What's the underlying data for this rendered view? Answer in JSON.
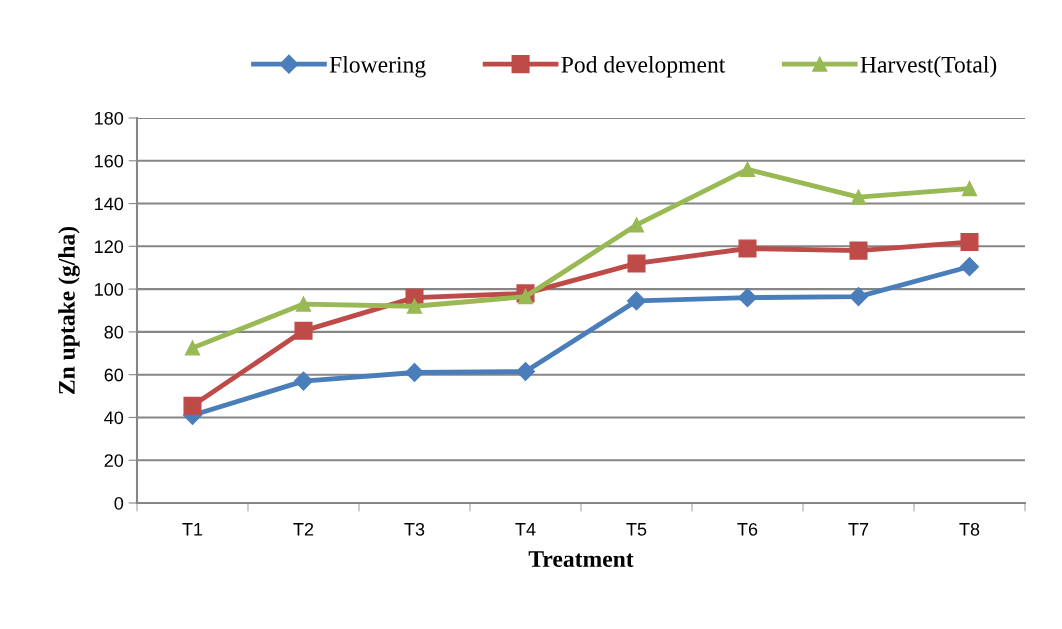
{
  "chart_data": {
    "type": "line",
    "xlabel": "Treatment",
    "ylabel": "Zn uptake (g/ha)",
    "categories": [
      "T1",
      "T2",
      "T3",
      "T4",
      "T5",
      "T6",
      "T7",
      "T8"
    ],
    "series": [
      {
        "name": "Flowering",
        "color": "#4a7ebb",
        "marker": "diamond",
        "values": [
          41,
          57,
          61,
          61.5,
          94.5,
          96,
          96.5,
          110.5
        ]
      },
      {
        "name": "Pod development",
        "color": "#be4b48",
        "marker": "square",
        "values": [
          45.5,
          80.5,
          96,
          98,
          112,
          119,
          118,
          122
        ]
      },
      {
        "name": "Harvest(Total)",
        "color": "#98b954",
        "marker": "triangle",
        "values": [
          72.5,
          93,
          92,
          96.5,
          130,
          156,
          143,
          147
        ]
      }
    ],
    "ylim": [
      0,
      180
    ],
    "yticks": [
      0,
      20,
      40,
      60,
      80,
      100,
      120,
      140,
      160,
      180
    ],
    "grid": "y",
    "legend": "top",
    "line_style": "solid"
  }
}
